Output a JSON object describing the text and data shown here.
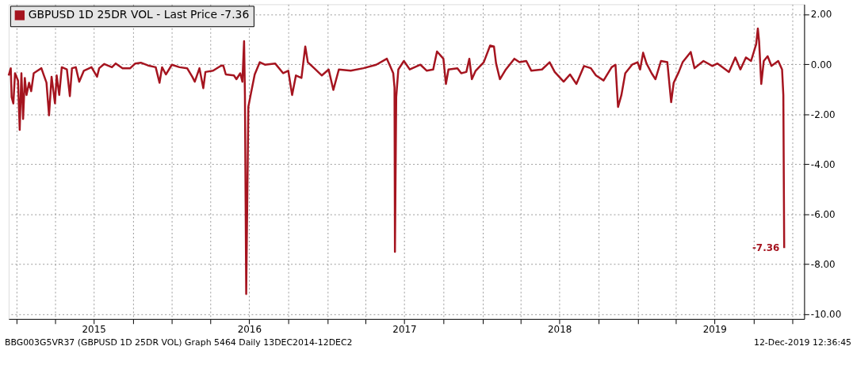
{
  "chart_data": {
    "type": "line",
    "series": [
      {
        "name": "GBPUSD 1D 25DR VOL - Last Price -7.36",
        "color": "#a5141f",
        "x": [
          "2014-12-13",
          "2014-12-18",
          "2014-12-20",
          "2014-12-24",
          "2014-12-28",
          "2015-01-04",
          "2015-01-08",
          "2015-01-12",
          "2015-01-16",
          "2015-01-20",
          "2015-01-24",
          "2015-01-30",
          "2015-02-04",
          "2015-02-10",
          "2015-02-19",
          "2015-02-28",
          "2015-03-06",
          "2015-03-12",
          "2015-03-18",
          "2015-03-24",
          "2015-04-01",
          "2015-04-05",
          "2015-04-11",
          "2015-04-17",
          "2015-04-29",
          "2015-05-06",
          "2015-05-11",
          "2015-05-20",
          "2015-05-28",
          "2015-06-08",
          "2015-06-26",
          "2015-07-09",
          "2015-07-14",
          "2015-07-26",
          "2015-08-13",
          "2015-08-22",
          "2015-09-07",
          "2015-09-25",
          "2015-10-07",
          "2015-10-20",
          "2015-11-06",
          "2015-11-24",
          "2015-12-03",
          "2015-12-09",
          "2015-12-18",
          "2016-01-01",
          "2016-01-19",
          "2016-02-06",
          "2016-02-18",
          "2016-02-24",
          "2016-03-06",
          "2016-03-15",
          "2016-03-20",
          "2016-04-07",
          "2016-04-25",
          "2016-05-01",
          "2016-05-07",
          "2016-05-26",
          "2016-06-01",
          "2016-06-10",
          "2016-06-15",
          "2016-06-19",
          "2016-06-21",
          "2016-06-24",
          "2016-06-29",
          "2016-07-05",
          "2016-07-14",
          "2016-07-26",
          "2016-08-07",
          "2016-08-31",
          "2016-09-19",
          "2016-10-01",
          "2016-10-10",
          "2016-10-19",
          "2016-11-01",
          "2016-11-10",
          "2016-11-16",
          "2016-12-01",
          "2016-12-19",
          "2017-01-04",
          "2017-01-15",
          "2017-01-28",
          "2017-02-25",
          "2017-03-27",
          "2017-04-26",
          "2017-05-21",
          "2017-05-30",
          "2017-06-05",
          "2017-06-08",
          "2017-06-09",
          "2017-06-12",
          "2017-06-17",
          "2017-06-30",
          "2017-07-14",
          "2017-08-08",
          "2017-08-23",
          "2017-09-07",
          "2017-09-16",
          "2017-10-01",
          "2017-10-07",
          "2017-10-13",
          "2017-11-03",
          "2017-11-12",
          "2017-11-24",
          "2017-12-01",
          "2017-12-07",
          "2017-12-16",
          "2018-01-04",
          "2018-01-19",
          "2018-01-28",
          "2018-02-02",
          "2018-02-11",
          "2018-02-25",
          "2018-03-17",
          "2018-03-29",
          "2018-04-14",
          "2018-04-26",
          "2018-05-21",
          "2018-06-08",
          "2018-06-20",
          "2018-07-11",
          "2018-07-26",
          "2018-08-10",
          "2018-08-28",
          "2018-09-13",
          "2018-09-25",
          "2018-10-13",
          "2018-11-01",
          "2018-11-10",
          "2018-11-16",
          "2018-11-24",
          "2018-12-03",
          "2018-12-19",
          "2019-01-01",
          "2019-01-07",
          "2019-01-14",
          "2019-01-22",
          "2019-02-03",
          "2019-02-12",
          "2019-02-25",
          "2019-03-12",
          "2019-03-21",
          "2019-03-27",
          "2019-04-08",
          "2019-04-17",
          "2019-05-06",
          "2019-05-15",
          "2019-06-05",
          "2019-06-26",
          "2019-07-08",
          "2019-07-20",
          "2019-08-04",
          "2019-08-19",
          "2019-08-31",
          "2019-09-13",
          "2019-09-25",
          "2019-10-07",
          "2019-10-11",
          "2019-10-14",
          "2019-10-19",
          "2019-10-25",
          "2019-11-03",
          "2019-11-12",
          "2019-11-28",
          "2019-12-07",
          "2019-12-10",
          "2019-12-12"
        ],
        "values": [
          -0.45,
          -0.16,
          -1.32,
          -1.57,
          -0.36,
          -0.65,
          -2.63,
          -0.36,
          -2.19,
          -0.55,
          -1.23,
          -0.74,
          -1.08,
          -0.36,
          -0.26,
          -0.16,
          -0.45,
          -0.74,
          -2.05,
          -0.5,
          -1.57,
          -0.45,
          -1.23,
          -0.12,
          -0.21,
          -1.28,
          -0.16,
          -0.12,
          -0.7,
          -0.26,
          -0.12,
          -0.5,
          -0.16,
          0.01,
          -0.12,
          0.03,
          -0.16,
          -0.16,
          0.03,
          0.06,
          -0.05,
          -0.12,
          -0.74,
          -0.12,
          -0.41,
          -0.02,
          -0.12,
          -0.16,
          -0.5,
          -0.7,
          -0.16,
          -0.96,
          -0.31,
          -0.26,
          -0.07,
          -0.05,
          -0.41,
          -0.45,
          -0.6,
          -0.36,
          -0.7,
          0.92,
          -1.23,
          -9.2,
          -1.71,
          -1.18,
          -0.41,
          0.08,
          -0.02,
          0.03,
          -0.36,
          -0.26,
          -1.23,
          -0.45,
          -0.55,
          0.71,
          0.08,
          -0.16,
          -0.45,
          -0.21,
          -1.03,
          -0.21,
          -0.26,
          -0.16,
          -0.02,
          0.22,
          -0.12,
          -0.36,
          -0.94,
          -7.51,
          -1.32,
          -0.21,
          0.13,
          -0.21,
          -0.02,
          -0.26,
          -0.21,
          0.51,
          0.22,
          -0.79,
          -0.21,
          -0.16,
          -0.36,
          -0.31,
          0.22,
          -0.6,
          -0.26,
          0.08,
          0.75,
          0.71,
          0.03,
          -0.6,
          -0.21,
          0.22,
          0.08,
          0.13,
          -0.26,
          -0.21,
          0.08,
          -0.31,
          -0.7,
          -0.41,
          -0.79,
          -0.07,
          -0.16,
          -0.45,
          -0.65,
          -0.12,
          -0.02,
          -1.71,
          -1.23,
          -0.36,
          -0.02,
          0.08,
          -0.21,
          0.46,
          0.03,
          -0.36,
          -0.6,
          0.13,
          0.08,
          -1.52,
          -0.74,
          -0.31,
          0.08,
          0.49,
          -0.16,
          0.13,
          -0.07,
          0.03,
          -0.12,
          -0.31,
          0.27,
          -0.21,
          0.27,
          0.13,
          0.8,
          1.43,
          0.9,
          -0.79,
          0.13,
          0.32,
          -0.07,
          0.13,
          -0.21,
          -1.23,
          -7.36
        ]
      }
    ],
    "xlim": [
      "2014-12-13",
      "2020-01-28"
    ],
    "xticks": [
      {
        "value": "2015-01-01",
        "label": null
      },
      {
        "value": "2015-04-01",
        "label": null
      },
      {
        "value": "2015-07-01",
        "label": "2015"
      },
      {
        "value": "2015-10-01",
        "label": null
      },
      {
        "value": "2016-01-01",
        "label": null
      },
      {
        "value": "2016-04-01",
        "label": null
      },
      {
        "value": "2016-07-01",
        "label": "2016"
      },
      {
        "value": "2016-10-01",
        "label": null
      },
      {
        "value": "2017-01-01",
        "label": null
      },
      {
        "value": "2017-04-01",
        "label": null
      },
      {
        "value": "2017-07-01",
        "label": "2017"
      },
      {
        "value": "2017-10-01",
        "label": null
      },
      {
        "value": "2018-01-01",
        "label": null
      },
      {
        "value": "2018-04-01",
        "label": null
      },
      {
        "value": "2018-07-01",
        "label": "2018"
      },
      {
        "value": "2018-10-01",
        "label": null
      },
      {
        "value": "2019-01-01",
        "label": null
      },
      {
        "value": "2019-04-01",
        "label": null
      },
      {
        "value": "2019-07-01",
        "label": "2019"
      },
      {
        "value": "2019-10-01",
        "label": null
      },
      {
        "value": "2020-01-01",
        "label": null
      }
    ],
    "ylim": [
      -10.2,
      2.4
    ],
    "yticks": [
      {
        "value": 2,
        "label": "2.00"
      },
      {
        "value": 0,
        "label": "0.00"
      },
      {
        "value": -2,
        "label": "-2.00"
      },
      {
        "value": -4,
        "label": "-4.00"
      },
      {
        "value": -6,
        "label": "-6.00"
      },
      {
        "value": -8,
        "label": "-8.00"
      },
      {
        "value": -10,
        "label": "-10.00"
      }
    ],
    "grid": true,
    "legend": "top left",
    "marker": "none",
    "line_style": "solid",
    "annotations": [
      {
        "text": "-7.36",
        "x": "2019-12-12",
        "y": -7.36
      },
      "BBG003G5VR37 (GBPUSD 1D 25DR VOL) Graph 5464  Daily 13DEC2014-12DEC2",
      "12-Dec-2019 12:36:45"
    ]
  }
}
